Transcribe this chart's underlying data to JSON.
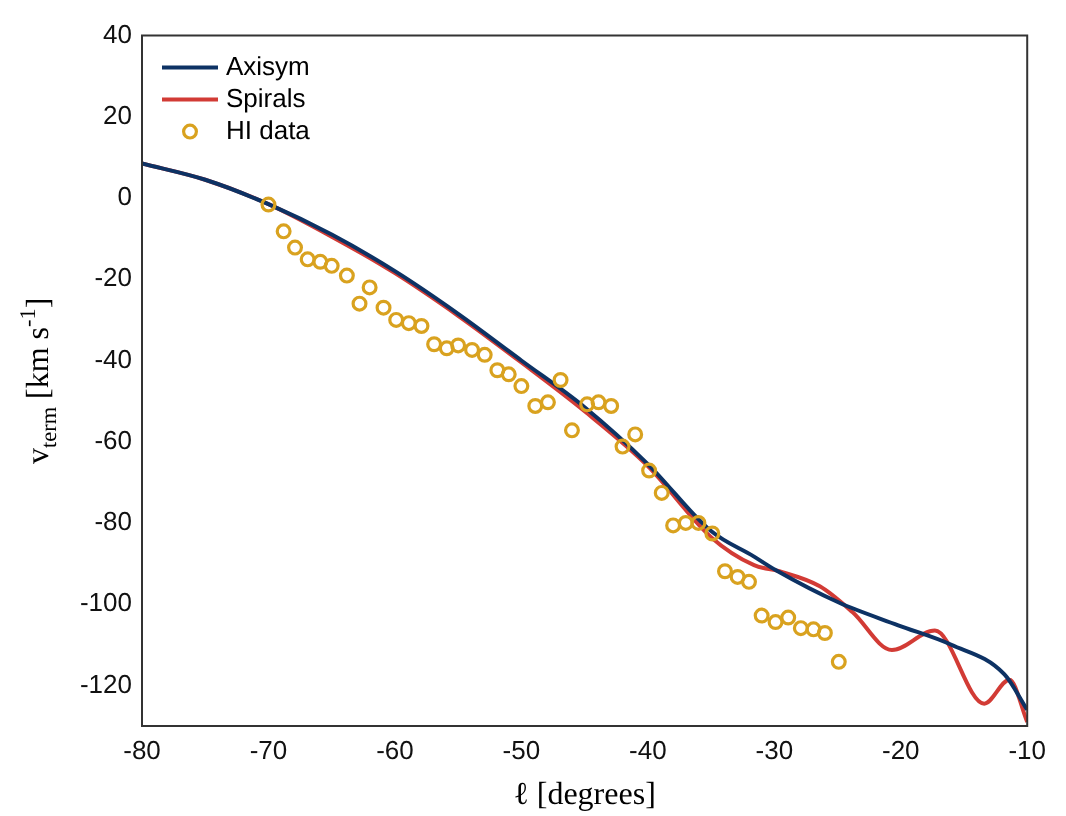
{
  "chart_data": {
    "type": "line",
    "xlabel": "ℓ [degrees]",
    "ylabel": "v$_{term}$ [km s$^{-1}$]",
    "xlim": [
      -80,
      -10
    ],
    "ylim": [
      -130,
      40
    ],
    "xticks": [
      -80,
      -70,
      -60,
      -50,
      -40,
      -30,
      -20,
      -10
    ],
    "yticks": [
      -120,
      -100,
      -80,
      -60,
      -40,
      -20,
      0,
      20,
      40
    ],
    "grid": false,
    "legend": "top left",
    "line_style": "solid",
    "series": [
      {
        "name": "Axisym",
        "color": "#0d3264",
        "marker": "none",
        "x": [
          -80,
          -75,
          -70,
          -65,
          -60,
          -55,
          -50,
          -45,
          -40,
          -35,
          -31.6,
          -29.9,
          -24.9,
          -20.2,
          -16,
          -11.8,
          -10
        ],
        "values": [
          8.5,
          4.5,
          -1.5,
          -9,
          -18,
          -28.5,
          -40,
          -51.5,
          -65.5,
          -82,
          -88.3,
          -91.6,
          -99.6,
          -105.2,
          -110,
          -117.3,
          -126
        ]
      },
      {
        "name": "Spirals",
        "color": "#d23b35",
        "marker": "none",
        "x": [
          -80,
          -75,
          -70,
          -65,
          -60,
          -55,
          -50,
          -45,
          -40,
          -35,
          -31.6,
          -29.6,
          -26.4,
          -23.8,
          -20.7,
          -17.3,
          -13.4,
          -11.4,
          -10
        ],
        "values": [
          8.5,
          4.5,
          -1.5,
          -9.5,
          -18.5,
          -29,
          -40.5,
          -52.5,
          -66,
          -83.5,
          -90.4,
          -91.9,
          -95.6,
          -102,
          -111.3,
          -106.5,
          -124.5,
          -118.6,
          -129
        ]
      },
      {
        "name": "HI data",
        "type": "scatter",
        "color": "#d9a21f",
        "marker": "circle",
        "x": [
          -70,
          -68.8,
          -67.9,
          -66.9,
          -65.9,
          -65,
          -63.8,
          -62.8,
          -62,
          -60.9,
          -59.9,
          -58.9,
          -57.9,
          -56.9,
          -55.9,
          -55,
          -53.9,
          -52.9,
          -51.9,
          -51,
          -50,
          -48.9,
          -47.9,
          -46.9,
          -46,
          -44.8,
          -43.9,
          -42.9,
          -42,
          -41,
          -39.9,
          -38.9,
          -38,
          -37,
          -36,
          -34.9,
          -33.9,
          -32.9,
          -32,
          -31,
          -29.9,
          -28.9,
          -27.9,
          -26.9,
          -26,
          -24.9
        ],
        "values": [
          -1.6,
          -8.2,
          -12.2,
          -15.1,
          -15.7,
          -16.7,
          -19.1,
          -26,
          -22,
          -27,
          -30,
          -30.8,
          -31.5,
          -36,
          -37,
          -36.3,
          -37.4,
          -38.6,
          -42.4,
          -43.4,
          -46.3,
          -51.2,
          -50.3,
          -44.8,
          -57.2,
          -50.8,
          -50.3,
          -51.2,
          -61.2,
          -58.2,
          -67.1,
          -72.6,
          -80.6,
          -80,
          -80,
          -82.6,
          -91.9,
          -93.3,
          -94.5,
          -102.8,
          -104.4,
          -103.3,
          -105.9,
          -106.2,
          -107.1,
          -114.2
        ]
      }
    ]
  }
}
